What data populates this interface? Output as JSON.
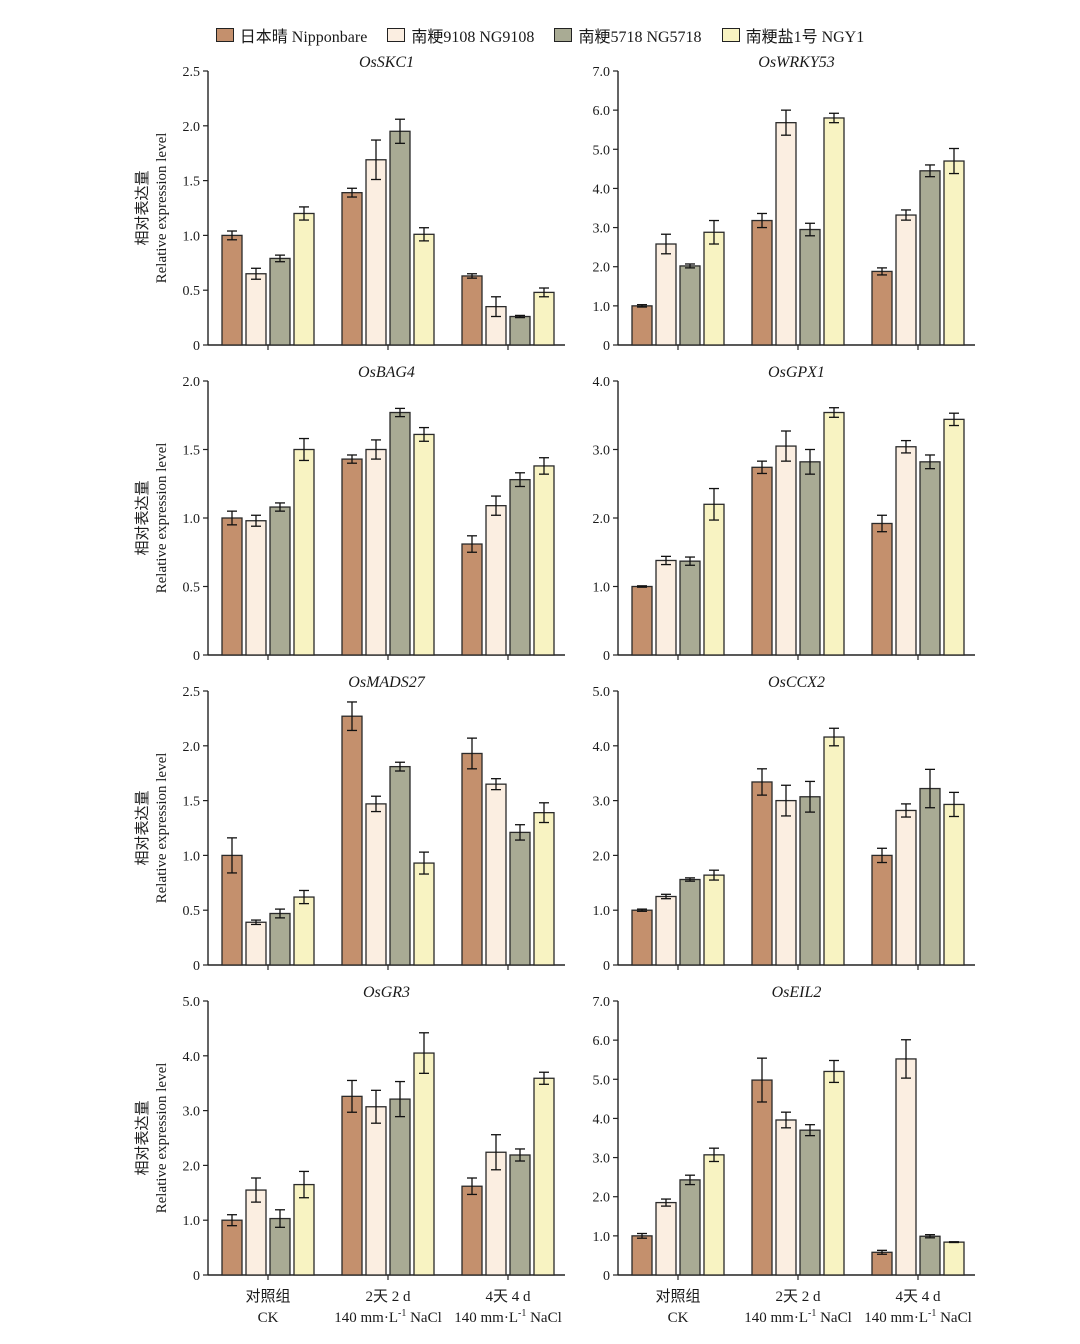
{
  "legend": {
    "items": [
      {
        "label": "日本晴 Nipponbare",
        "color": "#c4906d"
      },
      {
        "label": "南粳9108 NG9108",
        "color": "#fbeee1"
      },
      {
        "label": "南粳5718 NG5718",
        "color": "#a9ab94"
      },
      {
        "label": "南粳盐1号 NGY1",
        "color": "#f8f3c2"
      }
    ]
  },
  "y_axis_label": {
    "line1": "相对表达量",
    "line2": "Relative expression level"
  },
  "x_axis": {
    "groups": [
      {
        "line1": "对照组",
        "line2": "CK"
      },
      {
        "line1": "2天 2 d",
        "line2": "140 mm·L",
        "sup": "-1",
        "line2_end": " NaCl"
      },
      {
        "line1": "4天 4 d",
        "line2": "140 mm·L",
        "sup": "-1",
        "line2_end": " NaCl"
      }
    ]
  },
  "chart_data": [
    {
      "type": "bar",
      "title": "OsSKC1",
      "categories": [
        "CK",
        "2 d",
        "4 d"
      ],
      "ylim": [
        0,
        2.5
      ],
      "yticks": [
        "0",
        "0.5",
        "1.0",
        "1.5",
        "2.0",
        "2.5"
      ],
      "series": [
        {
          "name": "日本晴 Nipponbare",
          "values": [
            1.0,
            1.39,
            0.63
          ],
          "errors": [
            0.04,
            0.04,
            0.02
          ]
        },
        {
          "name": "南粳9108 NG9108",
          "values": [
            0.65,
            1.69,
            0.35
          ],
          "errors": [
            0.05,
            0.18,
            0.09
          ]
        },
        {
          "name": "南粳5718 NG5718",
          "values": [
            0.79,
            1.95,
            0.26
          ],
          "errors": [
            0.03,
            0.11,
            0.01
          ]
        },
        {
          "name": "南粳盐1号 NGY1",
          "values": [
            1.2,
            1.01,
            0.48
          ],
          "errors": [
            0.06,
            0.06,
            0.04
          ]
        }
      ]
    },
    {
      "type": "bar",
      "title": "OsWRKY53",
      "categories": [
        "CK",
        "2 d",
        "4 d"
      ],
      "ylim": [
        0,
        7.0
      ],
      "yticks": [
        "0",
        "1.0",
        "2.0",
        "3.0",
        "4.0",
        "5.0",
        "6.0",
        "7.0"
      ],
      "series": [
        {
          "name": "日本晴 Nipponbare",
          "values": [
            1.0,
            3.18,
            1.88
          ],
          "errors": [
            0.03,
            0.18,
            0.09
          ]
        },
        {
          "name": "南粳9108 NG9108",
          "values": [
            2.58,
            5.68,
            3.32
          ],
          "errors": [
            0.25,
            0.32,
            0.13
          ]
        },
        {
          "name": "南粳5718 NG5718",
          "values": [
            2.02,
            2.95,
            4.45
          ],
          "errors": [
            0.05,
            0.16,
            0.15
          ]
        },
        {
          "name": "南粳盐1号 NGY1",
          "values": [
            2.88,
            5.8,
            4.7
          ],
          "errors": [
            0.3,
            0.12,
            0.32
          ]
        }
      ]
    },
    {
      "type": "bar",
      "title": "OsBAG4",
      "categories": [
        "CK",
        "2 d",
        "4 d"
      ],
      "ylim": [
        0,
        2.0
      ],
      "yticks": [
        "0",
        "0.5",
        "1.0",
        "1.5",
        "2.0"
      ],
      "series": [
        {
          "name": "日本晴 Nipponbare",
          "values": [
            1.0,
            1.43,
            0.81
          ],
          "errors": [
            0.05,
            0.03,
            0.06
          ]
        },
        {
          "name": "南粳9108 NG9108",
          "values": [
            0.98,
            1.5,
            1.09
          ],
          "errors": [
            0.04,
            0.07,
            0.07
          ]
        },
        {
          "name": "南粳5718 NG5718",
          "values": [
            1.08,
            1.77,
            1.28
          ],
          "errors": [
            0.03,
            0.03,
            0.05
          ]
        },
        {
          "name": "南粳盐1号 NGY1",
          "values": [
            1.5,
            1.61,
            1.38
          ],
          "errors": [
            0.08,
            0.05,
            0.06
          ]
        }
      ]
    },
    {
      "type": "bar",
      "title": "OsGPX1",
      "categories": [
        "CK",
        "2 d",
        "4 d"
      ],
      "ylim": [
        0,
        4.0
      ],
      "yticks": [
        "0",
        "1.0",
        "2.0",
        "3.0",
        "4.0"
      ],
      "series": [
        {
          "name": "日本晴 Nipponbare",
          "values": [
            1.0,
            2.74,
            1.92
          ],
          "errors": [
            0.01,
            0.09,
            0.12
          ]
        },
        {
          "name": "南粳9108 NG9108",
          "values": [
            1.38,
            3.05,
            3.04
          ],
          "errors": [
            0.06,
            0.22,
            0.09
          ]
        },
        {
          "name": "南粳5718 NG5718",
          "values": [
            1.37,
            2.82,
            2.82
          ],
          "errors": [
            0.06,
            0.18,
            0.1
          ]
        },
        {
          "name": "南粳盐1号 NGY1",
          "values": [
            2.2,
            3.54,
            3.44
          ],
          "errors": [
            0.23,
            0.07,
            0.09
          ]
        }
      ]
    },
    {
      "type": "bar",
      "title": "OsMADS27",
      "categories": [
        "CK",
        "2 d",
        "4 d"
      ],
      "ylim": [
        0,
        2.5
      ],
      "yticks": [
        "0",
        "0.5",
        "1.0",
        "1.5",
        "2.0",
        "2.5"
      ],
      "series": [
        {
          "name": "日本晴 Nipponbare",
          "values": [
            1.0,
            2.27,
            1.93
          ],
          "errors": [
            0.16,
            0.13,
            0.14
          ]
        },
        {
          "name": "南粳9108 NG9108",
          "values": [
            0.39,
            1.47,
            1.65
          ],
          "errors": [
            0.02,
            0.07,
            0.05
          ]
        },
        {
          "name": "南粳5718 NG5718",
          "values": [
            0.47,
            1.81,
            1.21
          ],
          "errors": [
            0.04,
            0.04,
            0.07
          ]
        },
        {
          "name": "南粳盐1号 NGY1",
          "values": [
            0.62,
            0.93,
            1.39
          ],
          "errors": [
            0.06,
            0.1,
            0.09
          ]
        }
      ]
    },
    {
      "type": "bar",
      "title": "OsCCX2",
      "categories": [
        "CK",
        "2 d",
        "4 d"
      ],
      "ylim": [
        0,
        5.0
      ],
      "yticks": [
        "0",
        "1.0",
        "2.0",
        "3.0",
        "4.0",
        "5.0"
      ],
      "series": [
        {
          "name": "日本晴 Nipponbare",
          "values": [
            1.0,
            3.34,
            2.0
          ],
          "errors": [
            0.02,
            0.24,
            0.13
          ]
        },
        {
          "name": "南粳9108 NG9108",
          "values": [
            1.25,
            3.0,
            2.82
          ],
          "errors": [
            0.04,
            0.28,
            0.12
          ]
        },
        {
          "name": "南粳5718 NG5718",
          "values": [
            1.56,
            3.07,
            3.22
          ],
          "errors": [
            0.03,
            0.28,
            0.35
          ]
        },
        {
          "name": "南粳盐1号 NGY1",
          "values": [
            1.64,
            4.16,
            2.93
          ],
          "errors": [
            0.09,
            0.16,
            0.22
          ]
        }
      ]
    },
    {
      "type": "bar",
      "title": "OsGR3",
      "categories": [
        "CK",
        "2 d",
        "4 d"
      ],
      "ylim": [
        0,
        5.0
      ],
      "yticks": [
        "0",
        "1.0",
        "2.0",
        "3.0",
        "4.0",
        "5.0"
      ],
      "series": [
        {
          "name": "日本晴 Nipponbare",
          "values": [
            1.0,
            3.26,
            1.62
          ],
          "errors": [
            0.1,
            0.29,
            0.15
          ]
        },
        {
          "name": "南粳9108 NG9108",
          "values": [
            1.55,
            3.07,
            2.24
          ],
          "errors": [
            0.22,
            0.3,
            0.32
          ]
        },
        {
          "name": "南粳5718 NG5718",
          "values": [
            1.03,
            3.21,
            2.19
          ],
          "errors": [
            0.16,
            0.32,
            0.11
          ]
        },
        {
          "name": "南粳盐1号 NGY1",
          "values": [
            1.65,
            4.05,
            3.59
          ],
          "errors": [
            0.24,
            0.37,
            0.11
          ]
        }
      ]
    },
    {
      "type": "bar",
      "title": "OsEIL2",
      "categories": [
        "CK",
        "2 d",
        "4 d"
      ],
      "ylim": [
        0,
        7.0
      ],
      "yticks": [
        "0",
        "1.0",
        "2.0",
        "3.0",
        "4.0",
        "5.0",
        "6.0",
        "7.0"
      ],
      "series": [
        {
          "name": "日本晴 Nipponbare",
          "values": [
            1.0,
            4.98,
            0.58
          ],
          "errors": [
            0.06,
            0.56,
            0.05
          ]
        },
        {
          "name": "南粳9108 NG9108",
          "values": [
            1.85,
            3.96,
            5.52
          ],
          "errors": [
            0.09,
            0.2,
            0.49
          ]
        },
        {
          "name": "南粳5718 NG5718",
          "values": [
            2.43,
            3.7,
            0.99
          ],
          "errors": [
            0.12,
            0.14,
            0.04
          ]
        },
        {
          "name": "南粳盐1号 NGY1",
          "values": [
            3.07,
            5.2,
            0.84
          ],
          "errors": [
            0.17,
            0.28,
            0.01
          ]
        }
      ]
    }
  ]
}
